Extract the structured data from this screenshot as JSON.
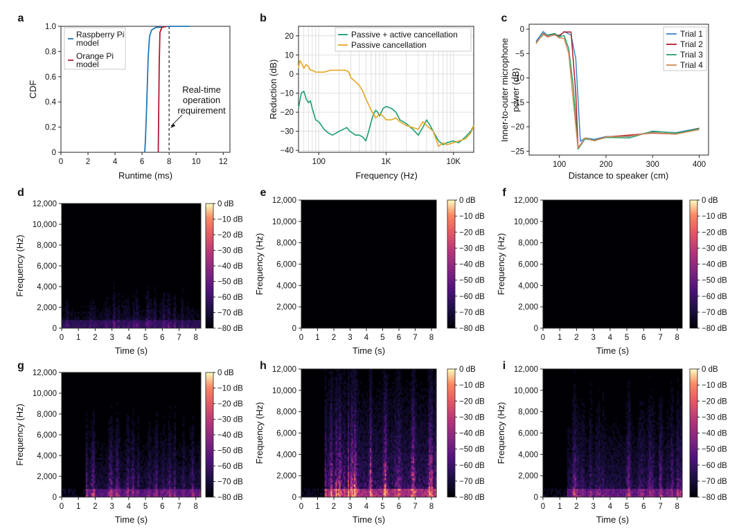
{
  "colors": {
    "raspberry": "#1f77b4",
    "orange_pi": "#b2182b",
    "active": "#1a9e6e",
    "passive": "#e5a623",
    "trial1": "#3b85c8",
    "trial2": "#b2182b",
    "trial3": "#2aa06e",
    "trial4": "#d08a52"
  },
  "panel_labels": [
    "a",
    "b",
    "c",
    "d",
    "e",
    "f",
    "g",
    "h",
    "i"
  ],
  "chart_data": [
    {
      "panel": "a",
      "type": "line",
      "xlabel": "Runtime (ms)",
      "ylabel": "CDF",
      "xlim": [
        0,
        12.5
      ],
      "ylim": [
        0,
        1.0
      ],
      "xticks": [
        0,
        2,
        4,
        6,
        8,
        10,
        12
      ],
      "yticks": [
        0,
        0.2,
        0.4,
        0.6,
        0.8,
        1.0
      ],
      "xtick_labels": [
        "0",
        "2",
        "4",
        "6",
        "8",
        "10",
        "12"
      ],
      "ytick_labels": [
        "0",
        "0.2",
        "0.4",
        "0.6",
        "0.8",
        "1.0"
      ],
      "legend_position": "top-left",
      "series": [
        {
          "name": "Raspberry Pi model",
          "legend_lines": [
            "Raspberry Pi",
            "model"
          ],
          "color_key": "raspberry",
          "points": [
            [
              6.2,
              0
            ],
            [
              6.25,
              0.1
            ],
            [
              6.35,
              0.4
            ],
            [
              6.45,
              0.75
            ],
            [
              6.55,
              0.92
            ],
            [
              6.7,
              0.97
            ],
            [
              7.0,
              0.99
            ],
            [
              8.0,
              1.0
            ],
            [
              9.5,
              1.0
            ]
          ]
        },
        {
          "name": "Orange Pi model",
          "legend_lines": [
            "Orange Pi",
            "model"
          ],
          "color_key": "orange_pi",
          "points": [
            [
              7.2,
              0
            ],
            [
              7.23,
              0.3
            ],
            [
              7.27,
              0.7
            ],
            [
              7.32,
              0.95
            ],
            [
              7.45,
              0.99
            ],
            [
              7.8,
              1.0
            ]
          ]
        }
      ],
      "reference_line": {
        "x": 8.0,
        "label": [
          "Real-time",
          "operation",
          "requirement"
        ]
      }
    },
    {
      "panel": "b",
      "type": "line",
      "xscale": "log",
      "xlabel": "Frequency (Hz)",
      "ylabel": "Reduction (dB)",
      "xlim": [
        50,
        20000
      ],
      "ylim": [
        -41,
        25
      ],
      "xticks": [
        100,
        1000,
        10000
      ],
      "xtick_labels": [
        "100",
        "1K",
        "10K"
      ],
      "yticks": [
        -40,
        -30,
        -20,
        -10,
        0,
        10,
        20
      ],
      "ytick_labels": [
        "−40",
        "−30",
        "−20",
        "−10",
        "0",
        "10",
        "20"
      ],
      "grid": true,
      "legend_position": "top-right",
      "series": [
        {
          "name": "Passive + active cancellation",
          "color_key": "active",
          "points": [
            [
              50,
              -18
            ],
            [
              55,
              -10
            ],
            [
              60,
              -9
            ],
            [
              65,
              -13
            ],
            [
              70,
              -15
            ],
            [
              75,
              -14
            ],
            [
              80,
              -18
            ],
            [
              90,
              -24
            ],
            [
              100,
              -25
            ],
            [
              110,
              -27
            ],
            [
              120,
              -29
            ],
            [
              140,
              -31
            ],
            [
              160,
              -32
            ],
            [
              180,
              -31
            ],
            [
              200,
              -30
            ],
            [
              230,
              -29
            ],
            [
              260,
              -28
            ],
            [
              290,
              -30
            ],
            [
              320,
              -31
            ],
            [
              350,
              -32
            ],
            [
              400,
              -32
            ],
            [
              450,
              -33
            ],
            [
              500,
              -35
            ],
            [
              550,
              -30
            ],
            [
              600,
              -25
            ],
            [
              650,
              -21
            ],
            [
              700,
              -19
            ],
            [
              750,
              -20
            ],
            [
              800,
              -22
            ],
            [
              850,
              -20
            ],
            [
              900,
              -18
            ],
            [
              1000,
              -17
            ],
            [
              1200,
              -18
            ],
            [
              1400,
              -20
            ],
            [
              1600,
              -24
            ],
            [
              2000,
              -26
            ],
            [
              2500,
              -29
            ],
            [
              3000,
              -32
            ],
            [
              3500,
              -28
            ],
            [
              4000,
              -24
            ],
            [
              4500,
              -27
            ],
            [
              5000,
              -30
            ],
            [
              6000,
              -35
            ],
            [
              7000,
              -37
            ],
            [
              8000,
              -36
            ],
            [
              10000,
              -35
            ],
            [
              12000,
              -36
            ],
            [
              15000,
              -33
            ],
            [
              18000,
              -30
            ],
            [
              20000,
              -27
            ]
          ]
        },
        {
          "name": "Passive cancellation",
          "color_key": "passive",
          "points": [
            [
              50,
              3
            ],
            [
              52,
              7
            ],
            [
              55,
              6
            ],
            [
              60,
              3
            ],
            [
              65,
              5
            ],
            [
              70,
              4
            ],
            [
              75,
              2
            ],
            [
              80,
              2
            ],
            [
              90,
              1
            ],
            [
              100,
              1
            ],
            [
              120,
              1
            ],
            [
              150,
              2
            ],
            [
              200,
              2
            ],
            [
              250,
              2
            ],
            [
              280,
              1
            ],
            [
              300,
              -2
            ],
            [
              350,
              -4
            ],
            [
              400,
              -6
            ],
            [
              450,
              -9
            ],
            [
              500,
              -13
            ],
            [
              550,
              -16
            ],
            [
              600,
              -19
            ],
            [
              650,
              -21
            ],
            [
              700,
              -23
            ],
            [
              750,
              -22
            ],
            [
              800,
              -21
            ],
            [
              900,
              -22
            ],
            [
              1000,
              -24
            ],
            [
              1200,
              -24
            ],
            [
              1400,
              -23
            ],
            [
              1600,
              -25
            ],
            [
              2000,
              -27
            ],
            [
              2500,
              -28
            ],
            [
              3000,
              -29
            ],
            [
              3500,
              -25
            ],
            [
              4000,
              -27
            ],
            [
              5000,
              -30
            ],
            [
              5500,
              -34
            ],
            [
              6000,
              -38
            ],
            [
              7000,
              -36
            ],
            [
              8000,
              -37
            ],
            [
              10000,
              -36
            ],
            [
              12000,
              -35
            ],
            [
              15000,
              -34
            ],
            [
              18000,
              -31
            ],
            [
              20000,
              -27
            ]
          ]
        }
      ]
    },
    {
      "panel": "c",
      "type": "line",
      "xlabel": "Distance to speaker (cm)",
      "ylabel": "Inner-to-outer microphone power (dB)",
      "ylabel_lines": [
        "Inner-to-outer microphone",
        "power (dB)"
      ],
      "xlim": [
        35,
        420
      ],
      "ylim": [
        -25.8,
        1.0
      ],
      "xticks": [
        100,
        200,
        300,
        400
      ],
      "xtick_labels": [
        "100",
        "200",
        "300",
        "400"
      ],
      "yticks": [
        -25,
        -20,
        -15,
        -10,
        -5,
        0
      ],
      "ytick_labels": [
        "−25",
        "−20",
        "−15",
        "−10",
        "−5",
        "0"
      ],
      "legend_position": "top-right",
      "series": [
        {
          "name": "Trial 1",
          "color_key": "trial1",
          "points": [
            [
              50,
              -2.5
            ],
            [
              65,
              -0.5
            ],
            [
              75,
              -1.3
            ],
            [
              90,
              -1
            ],
            [
              100,
              -1.5
            ],
            [
              110,
              -0.5
            ],
            [
              125,
              -1.2
            ],
            [
              135,
              -6
            ],
            [
              145,
              -23
            ],
            [
              155,
              -22.3
            ],
            [
              175,
              -22.6
            ],
            [
              200,
              -22
            ],
            [
              250,
              -22
            ],
            [
              300,
              -21
            ],
            [
              350,
              -21.2
            ],
            [
              400,
              -20.3
            ]
          ]
        },
        {
          "name": "Trial 2",
          "color_key": "trial2",
          "points": [
            [
              50,
              -2.8
            ],
            [
              65,
              -1
            ],
            [
              75,
              -1.6
            ],
            [
              90,
              -1.1
            ],
            [
              100,
              -1.3
            ],
            [
              110,
              -0.6
            ],
            [
              125,
              -0.6
            ],
            [
              135,
              -13
            ],
            [
              140,
              -24.3
            ],
            [
              155,
              -22.4
            ],
            [
              175,
              -22.8
            ],
            [
              200,
              -22.1
            ],
            [
              250,
              -21.7
            ],
            [
              300,
              -21.3
            ],
            [
              350,
              -21.5
            ],
            [
              400,
              -20.3
            ]
          ]
        },
        {
          "name": "Trial 3",
          "color_key": "trial3",
          "points": [
            [
              50,
              -2.8
            ],
            [
              65,
              -1.1
            ],
            [
              75,
              -1.2
            ],
            [
              90,
              -0.9
            ],
            [
              100,
              -1.6
            ],
            [
              110,
              -1.3
            ],
            [
              120,
              -4
            ],
            [
              130,
              -12
            ],
            [
              140,
              -24.6
            ],
            [
              155,
              -22.5
            ],
            [
              175,
              -22.8
            ],
            [
              200,
              -22.2
            ],
            [
              250,
              -22.3
            ],
            [
              300,
              -20.9
            ],
            [
              350,
              -21.3
            ],
            [
              400,
              -20.4
            ]
          ]
        },
        {
          "name": "Trial 4",
          "color_key": "trial4",
          "points": [
            [
              50,
              -3
            ],
            [
              65,
              -0.8
            ],
            [
              75,
              -1.5
            ],
            [
              90,
              -1.2
            ],
            [
              100,
              -1.8
            ],
            [
              110,
              -1.9
            ],
            [
              120,
              -5
            ],
            [
              130,
              -15
            ],
            [
              140,
              -24.4
            ],
            [
              155,
              -22.3
            ],
            [
              175,
              -22.9
            ],
            [
              200,
              -22.1
            ],
            [
              250,
              -21.9
            ],
            [
              300,
              -21.2
            ],
            [
              350,
              -21.5
            ],
            [
              400,
              -20.6
            ]
          ]
        }
      ]
    },
    {
      "panel": "d-i",
      "type": "heatmap",
      "description_of_grid": "3x3 grid of spectrograms (panels d–i)",
      "xlabel": "Time (s)",
      "ylabel": "Frequency (Hz)",
      "xlim": [
        0,
        8.3
      ],
      "ylim": [
        0,
        12000
      ],
      "xticks": [
        0,
        1,
        2,
        3,
        4,
        5,
        6,
        7,
        8
      ],
      "xtick_labels": [
        "0",
        "1",
        "2",
        "3",
        "4",
        "5",
        "6",
        "7",
        "8"
      ],
      "yticks": [
        0,
        2000,
        4000,
        6000,
        8000,
        10000,
        12000
      ],
      "ytick_labels": [
        "0",
        "2,000",
        "4,000",
        "6,000",
        "8,000",
        "10,000",
        "12,000"
      ],
      "colorbar": {
        "min_db": -80,
        "max_db": 0,
        "ticks": [
          0,
          -10,
          -20,
          -30,
          -40,
          -50,
          -60,
          -70,
          -80
        ],
        "tick_labels": [
          "0 dB",
          "−10 dB",
          "−20 dB",
          "−30 dB",
          "−40 dB",
          "−50 dB",
          "−60 dB",
          "−70 dB",
          "−80 dB"
        ]
      },
      "panels": [
        {
          "label": "d",
          "level": 0.35,
          "bandwidth_hz": 4500,
          "speech_start_s": 0,
          "speech_end_s": 8.3,
          "seed": 11
        },
        {
          "label": "e",
          "level": 0.0,
          "bandwidth_hz": 0,
          "speech_start_s": 0,
          "speech_end_s": 0,
          "seed": 12
        },
        {
          "label": "f",
          "level": 0.05,
          "bandwidth_hz": 300,
          "speech_start_s": 0,
          "speech_end_s": 8.3,
          "seed": 13
        },
        {
          "label": "g",
          "level": 0.55,
          "bandwidth_hz": 8000,
          "speech_start_s": 1.4,
          "speech_end_s": 8.3,
          "seed": 14
        },
        {
          "label": "h",
          "level": 0.9,
          "bandwidth_hz": 11500,
          "speech_start_s": 1.4,
          "speech_end_s": 8.3,
          "seed": 15
        },
        {
          "label": "i",
          "level": 0.6,
          "bandwidth_hz": 10000,
          "speech_start_s": 1.4,
          "speech_end_s": 8.3,
          "seed": 16
        }
      ]
    }
  ]
}
